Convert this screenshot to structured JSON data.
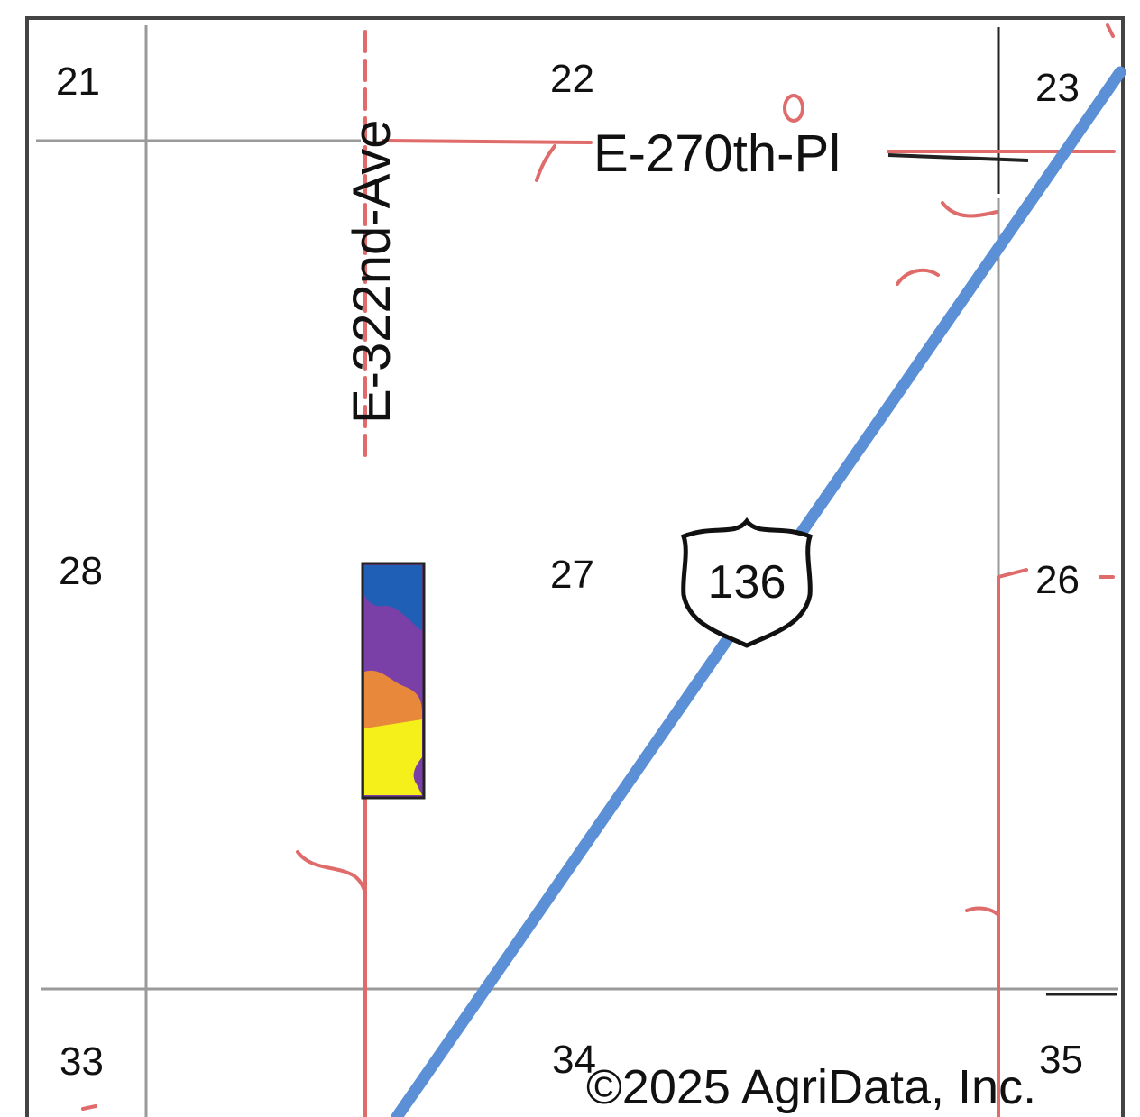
{
  "map": {
    "sections": {
      "s21": "21",
      "s22": "22",
      "s23": "23",
      "s28": "28",
      "s27": "27",
      "s26": "26",
      "s33": "33",
      "s34": "34",
      "s35": "35"
    },
    "roads": {
      "vertical_label": "E-322nd-Ave",
      "horizontal_label": "E-270th-Pl"
    },
    "highway": {
      "shield_number": "136",
      "color": "#5b8fd6"
    },
    "road_color": "#e06b6b",
    "grid_color": "#9a9a9a",
    "field_soil_colors": [
      "#1f5fb5",
      "#7b3fa8",
      "#e8883a",
      "#f5ef1a"
    ],
    "copyright": "©2025 AgriData, Inc."
  }
}
